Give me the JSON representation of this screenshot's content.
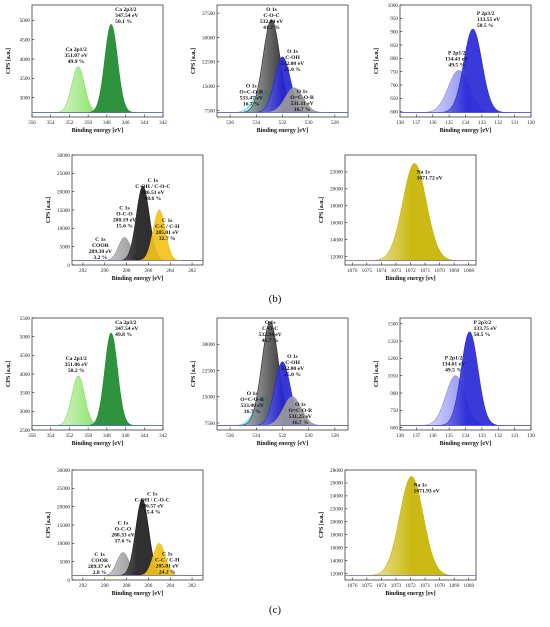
{
  "figure": {
    "panel_labels": [
      "(b)",
      "(c)"
    ]
  },
  "chart_data": [
    {
      "type": "area",
      "panel": "(b)",
      "title": "",
      "xlabel": "Binding energy [eV]",
      "ylabel": "CPS [a.u.]",
      "xlim": [
        356,
        342
      ],
      "ylim": [
        2500,
        5400
      ],
      "xticks": [
        356,
        354,
        352,
        350,
        348,
        346,
        344,
        342
      ],
      "yticks": [
        3000,
        3500,
        4000,
        4500,
        5000
      ],
      "peaks": [
        {
          "label": [
            "Ca 2p1/2",
            "351.07 eV",
            "49.9 %"
          ],
          "center": 351.07,
          "height": 3800,
          "fwhm": 1.6,
          "color": "#7fe05a"
        },
        {
          "label": [
            "Ca 2p3/2",
            "347.54 eV",
            "50.1 %"
          ],
          "center": 347.54,
          "height": 4900,
          "fwhm": 1.6,
          "color": "#1c8a2c"
        }
      ]
    },
    {
      "type": "area",
      "panel": "(b)",
      "title": "",
      "xlabel": "Binding energy [eV]",
      "ylabel": "CPS [a.u.]",
      "xlim": [
        537,
        527
      ],
      "ylim": [
        5500,
        40000
      ],
      "xticks": [
        536,
        534,
        532,
        530,
        528
      ],
      "yticks": [
        7500,
        15000,
        22500,
        30000,
        37500
      ],
      "peaks": [
        {
          "label": [
            "O 1s",
            "O=C-O-R",
            "533.47 eV",
            "16.7 %"
          ],
          "center": 533.47,
          "height": 14000,
          "fwhm": 1.6,
          "color": "#29d9f0"
        },
        {
          "label": [
            "O 1s",
            "C-O-C",
            "532.84 eV",
            "41.7 %"
          ],
          "center": 532.84,
          "height": 35500,
          "fwhm": 1.5,
          "color": "#2a2a2a"
        },
        {
          "label": [
            "O 1s",
            "C-OH",
            "532.00 eV",
            "25.0 %"
          ],
          "center": 532.0,
          "height": 24000,
          "fwhm": 1.4,
          "color": "#2626d6"
        },
        {
          "label": [
            "O 1s",
            "O=C-O-R",
            "531.11 eV",
            "16.7 %"
          ],
          "center": 531.11,
          "height": 14500,
          "fwhm": 1.6,
          "color": "#9a9a9a"
        }
      ]
    },
    {
      "type": "area",
      "panel": "(b)",
      "title": "",
      "xlabel": "Binding energy [eV]",
      "ylabel": "CPS [a.u.]",
      "xlim": [
        138,
        130
      ],
      "ylim": [
        580,
        1000
      ],
      "xticks": [
        138,
        137,
        136,
        135,
        134,
        133,
        132,
        131,
        130
      ],
      "yticks": [
        600,
        650,
        700,
        750,
        800,
        850,
        900,
        950,
        1000
      ],
      "peaks": [
        {
          "label": [
            "P 2p1/2",
            "134.41 eV",
            "49.5 %"
          ],
          "center": 134.41,
          "height": 755,
          "fwhm": 1.5,
          "color": "#8a8cf0"
        },
        {
          "label": [
            "P 2p3/2",
            "133.55 eV",
            "50.5 %"
          ],
          "center": 133.55,
          "height": 910,
          "fwhm": 1.3,
          "color": "#2929d8"
        }
      ]
    },
    {
      "type": "area",
      "panel": "(b)",
      "title": "",
      "xlabel": "Binding energy [eV]",
      "ylabel": "CPS [a.u.]",
      "xlim": [
        293,
        281
      ],
      "ylim": [
        0,
        30000
      ],
      "xticks": [
        292,
        290,
        288,
        286,
        284,
        282
      ],
      "yticks": [
        0,
        5000,
        10000,
        15000,
        20000,
        25000,
        30000
      ],
      "peaks": [
        {
          "label": [
            "C 1s",
            "COOR",
            "289.30 eV",
            "3.2 %"
          ],
          "center": 289.3,
          "height": 1200,
          "fwhm": 1.4,
          "color": "#f2ef6a"
        },
        {
          "label": [
            "C 1s",
            "O-C-O",
            "288.19 eV",
            "15.6 %"
          ],
          "center": 288.19,
          "height": 7500,
          "fwhm": 1.3,
          "color": "#8c8c8c"
        },
        {
          "label": [
            "C 1s",
            "C-OH / C-O-C",
            "286.51 eV",
            "48.6 %"
          ],
          "center": 286.51,
          "height": 21500,
          "fwhm": 1.4,
          "color": "#1e1e1e"
        },
        {
          "label": [
            "C 1s",
            "C-C / C-H",
            "285.01 eV",
            "32.7 %"
          ],
          "center": 285.01,
          "height": 15000,
          "fwhm": 1.3,
          "color": "#f2c21a"
        }
      ]
    },
    {
      "type": "area",
      "panel": "(b)",
      "title": "",
      "xlabel": "Binding energy [ev]",
      "ylabel": "CPS [a.u.]",
      "xlim": [
        1076.5,
        1067.5
      ],
      "ylim": [
        11000,
        24000
      ],
      "xticks": [
        1076,
        1075,
        1074,
        1073,
        1072,
        1071,
        1070,
        1069,
        1068
      ],
      "yticks": [
        12000,
        14000,
        16000,
        18000,
        20000,
        22000
      ],
      "peaks": [
        {
          "label": [
            "Na 1s",
            "1071.72 eV"
          ],
          "center": 1071.72,
          "height": 23000,
          "fwhm": 1.9,
          "color": "#c8b400"
        }
      ]
    },
    {
      "type": "area",
      "panel": "(c)",
      "title": "",
      "xlabel": "Binding energy [eV]",
      "ylabel": "CPS [a.u.]",
      "xlim": [
        356,
        342
      ],
      "ylim": [
        2500,
        5500
      ],
      "xticks": [
        356,
        354,
        352,
        350,
        348,
        346,
        344,
        342
      ],
      "yticks": [
        2500,
        3000,
        3500,
        4000,
        4500,
        5000,
        5500
      ],
      "peaks": [
        {
          "label": [
            "Ca 2p1/2",
            "351.06 eV",
            "50.2 %"
          ],
          "center": 351.06,
          "height": 3950,
          "fwhm": 1.6,
          "color": "#7fe05a"
        },
        {
          "label": [
            "Ca 2p3/2",
            "347.54 eV",
            "49.8 %"
          ],
          "center": 347.54,
          "height": 5100,
          "fwhm": 1.6,
          "color": "#1c8a2c"
        }
      ]
    },
    {
      "type": "area",
      "panel": "(c)",
      "title": "",
      "xlabel": "Binding energy [eV]",
      "ylabel": "CPS [a.u.]",
      "xlim": [
        537,
        527
      ],
      "ylim": [
        5500,
        37500
      ],
      "xticks": [
        536,
        534,
        532,
        530,
        528
      ],
      "yticks": [
        7500,
        15000,
        22500,
        30000
      ],
      "peaks": [
        {
          "label": [
            "O 1s",
            "O=C-O-R",
            "533.40 eV",
            "16.7 %"
          ],
          "center": 533.4,
          "height": 15000,
          "fwhm": 1.6,
          "color": "#29d9f0"
        },
        {
          "label": [
            "O 1s",
            "C-O-C",
            "532.94 eV",
            "41.7 %"
          ],
          "center": 532.94,
          "height": 36500,
          "fwhm": 1.5,
          "color": "#2a2a2a"
        },
        {
          "label": [
            "O 1s",
            "C-OH",
            "532.00 eV",
            "25.0 %"
          ],
          "center": 532.0,
          "height": 25000,
          "fwhm": 1.4,
          "color": "#2626d6"
        },
        {
          "label": [
            "O 1s",
            "O=C-O-R",
            "531.25 eV",
            "16.7 %"
          ],
          "center": 531.25,
          "height": 15000,
          "fwhm": 1.6,
          "color": "#9a9a9a"
        }
      ]
    },
    {
      "type": "area",
      "panel": "(c)",
      "title": "",
      "xlabel": "Binding energy [eV]",
      "ylabel": "CPS [a.u.]",
      "xlim": [
        138,
        130
      ],
      "ylim": [
        580,
        1550
      ],
      "xticks": [
        138,
        137,
        136,
        135,
        134,
        133,
        132,
        131,
        130
      ],
      "yticks": [
        600,
        750,
        900,
        1050,
        1200,
        1350,
        1500
      ],
      "peaks": [
        {
          "label": [
            "P 2p1/2",
            "134.61 eV",
            "49.5 %"
          ],
          "center": 134.61,
          "height": 1050,
          "fwhm": 1.4,
          "color": "#8a8cf0"
        },
        {
          "label": [
            "P 2p3/2",
            "133.75 eV",
            "50.5 %"
          ],
          "center": 133.75,
          "height": 1430,
          "fwhm": 1.2,
          "color": "#2929d8"
        }
      ]
    },
    {
      "type": "area",
      "panel": "(c)",
      "title": "",
      "xlabel": "Binding energy [eV]",
      "ylabel": "CPS [a.u.]",
      "xlim": [
        293,
        281
      ],
      "ylim": [
        0,
        30000
      ],
      "xticks": [
        292,
        290,
        288,
        286,
        284,
        282
      ],
      "yticks": [
        0,
        5000,
        10000,
        15000,
        20000,
        25000,
        30000
      ],
      "peaks": [
        {
          "label": [
            "C 1s",
            "COOR",
            "289.37 eV",
            "2.8 %"
          ],
          "center": 289.37,
          "height": 1000,
          "fwhm": 1.4,
          "color": "#f2ef6a"
        },
        {
          "label": [
            "C 1s",
            "O-C-O",
            "288.33 eV",
            "17.6 %"
          ],
          "center": 288.33,
          "height": 7500,
          "fwhm": 1.3,
          "color": "#8c8c8c"
        },
        {
          "label": [
            "C 1s",
            "C-OH / C-O-C",
            "286.57 eV",
            "55.4 %"
          ],
          "center": 286.57,
          "height": 22000,
          "fwhm": 1.4,
          "color": "#1e1e1e"
        },
        {
          "label": [
            "C 1s",
            "C-C / C-H",
            "285.01 eV",
            "24.2 %"
          ],
          "center": 285.01,
          "height": 10000,
          "fwhm": 1.3,
          "color": "#f2c21a"
        }
      ]
    },
    {
      "type": "area",
      "panel": "(c)",
      "title": "",
      "xlabel": "Binding energy [ev]",
      "ylabel": "CPS [a.u.]",
      "xlim": [
        1076.5,
        1067.5
      ],
      "ylim": [
        11000,
        28000
      ],
      "xticks": [
        1076,
        1075,
        1074,
        1073,
        1072,
        1071,
        1070,
        1069,
        1068
      ],
      "yticks": [
        12000,
        14000,
        16000,
        18000,
        20000,
        22000,
        24000,
        26000,
        28000
      ],
      "peaks": [
        {
          "label": [
            "Na 1s",
            "1071.93 eV"
          ],
          "center": 1071.93,
          "height": 27000,
          "fwhm": 1.9,
          "color": "#c8b400"
        }
      ]
    }
  ]
}
